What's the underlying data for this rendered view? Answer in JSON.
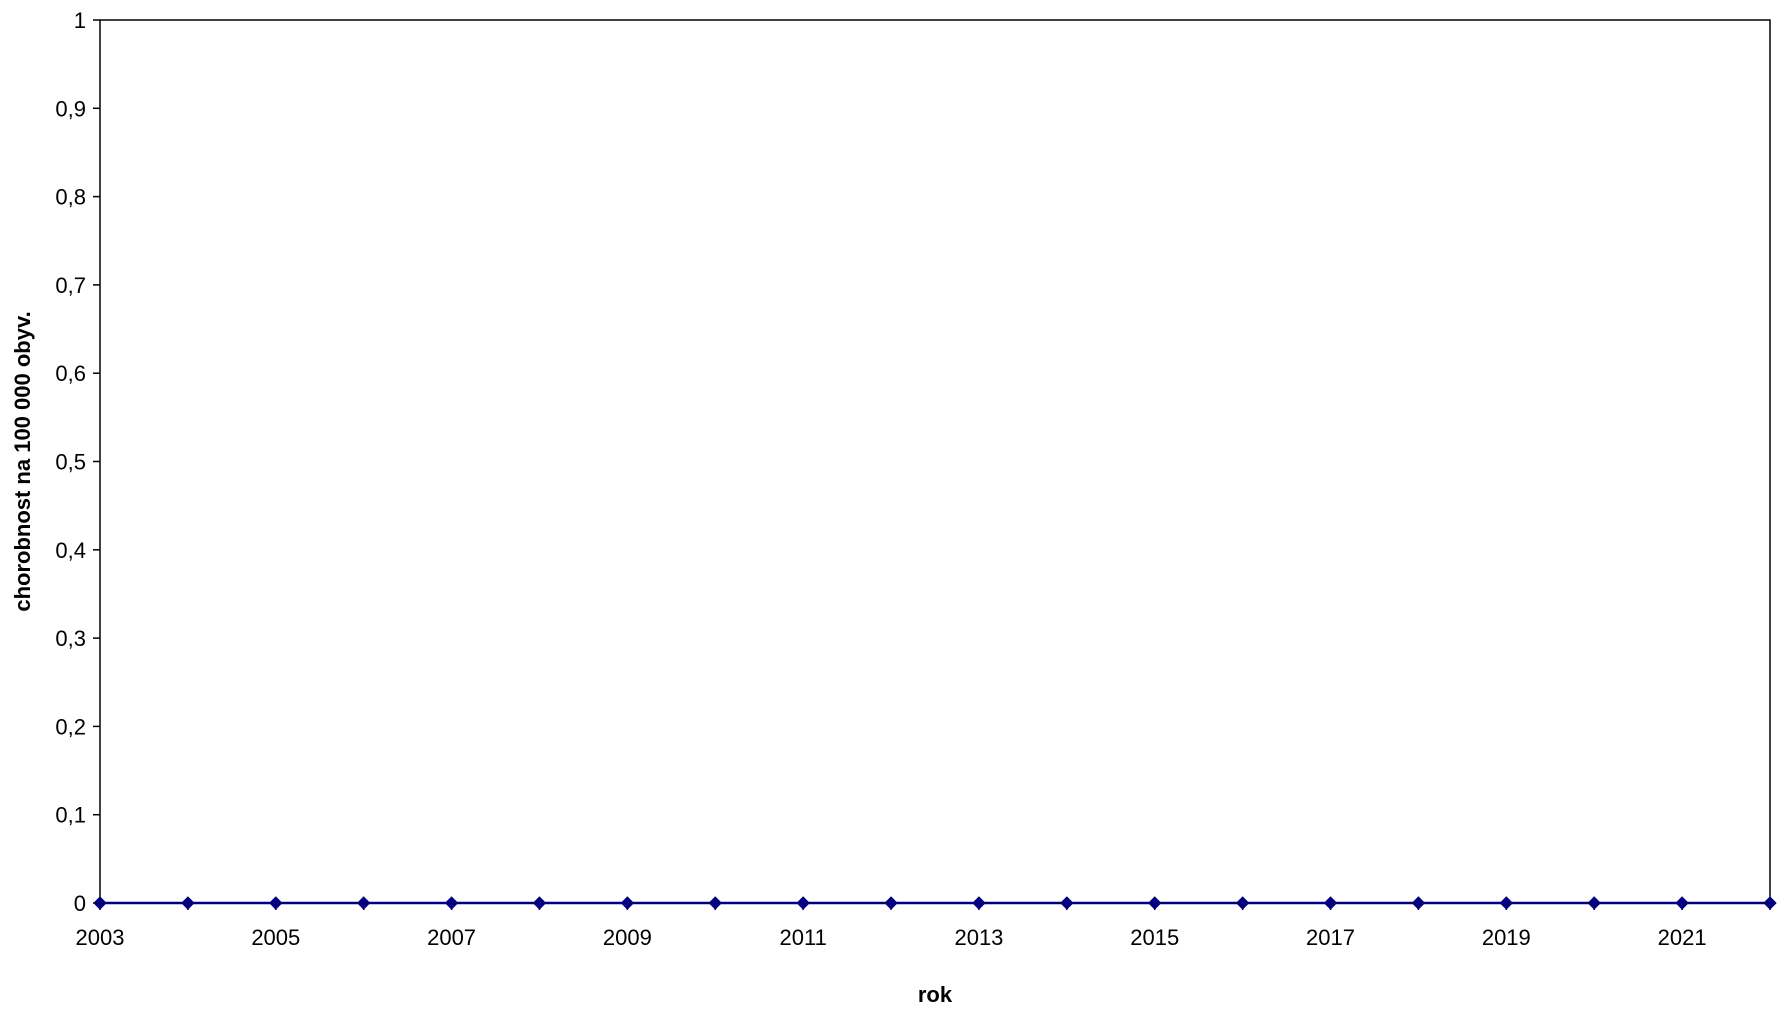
{
  "chart_data": {
    "type": "line",
    "title": "",
    "xlabel": "rok",
    "ylabel": "chorobnost na 100 000 obyv.",
    "x": [
      2003,
      2004,
      2005,
      2006,
      2007,
      2008,
      2009,
      2010,
      2011,
      2012,
      2013,
      2014,
      2015,
      2016,
      2017,
      2018,
      2019,
      2020,
      2021,
      2022
    ],
    "xlim": [
      2003,
      2022
    ],
    "x_tick_labels": [
      "2003",
      "2005",
      "2007",
      "2009",
      "2011",
      "2013",
      "2015",
      "2017",
      "2019",
      "2021"
    ],
    "ylim": [
      0,
      1
    ],
    "y_tick_values": [
      0,
      0.1,
      0.2,
      0.3,
      0.4,
      0.5,
      0.6,
      0.7,
      0.8,
      0.9,
      1
    ],
    "y_tick_labels": [
      "0",
      "0,1",
      "0,2",
      "0,3",
      "0,4",
      "0,5",
      "0,6",
      "0,7",
      "0,8",
      "0,9",
      "1"
    ],
    "grid": false,
    "series": [
      {
        "values": [
          0,
          0,
          0,
          0,
          0,
          0,
          0,
          0,
          0,
          0,
          0,
          0,
          0,
          0,
          0,
          0,
          0,
          0,
          0,
          0
        ],
        "color": "#000080",
        "marker": "diamond"
      }
    ]
  }
}
